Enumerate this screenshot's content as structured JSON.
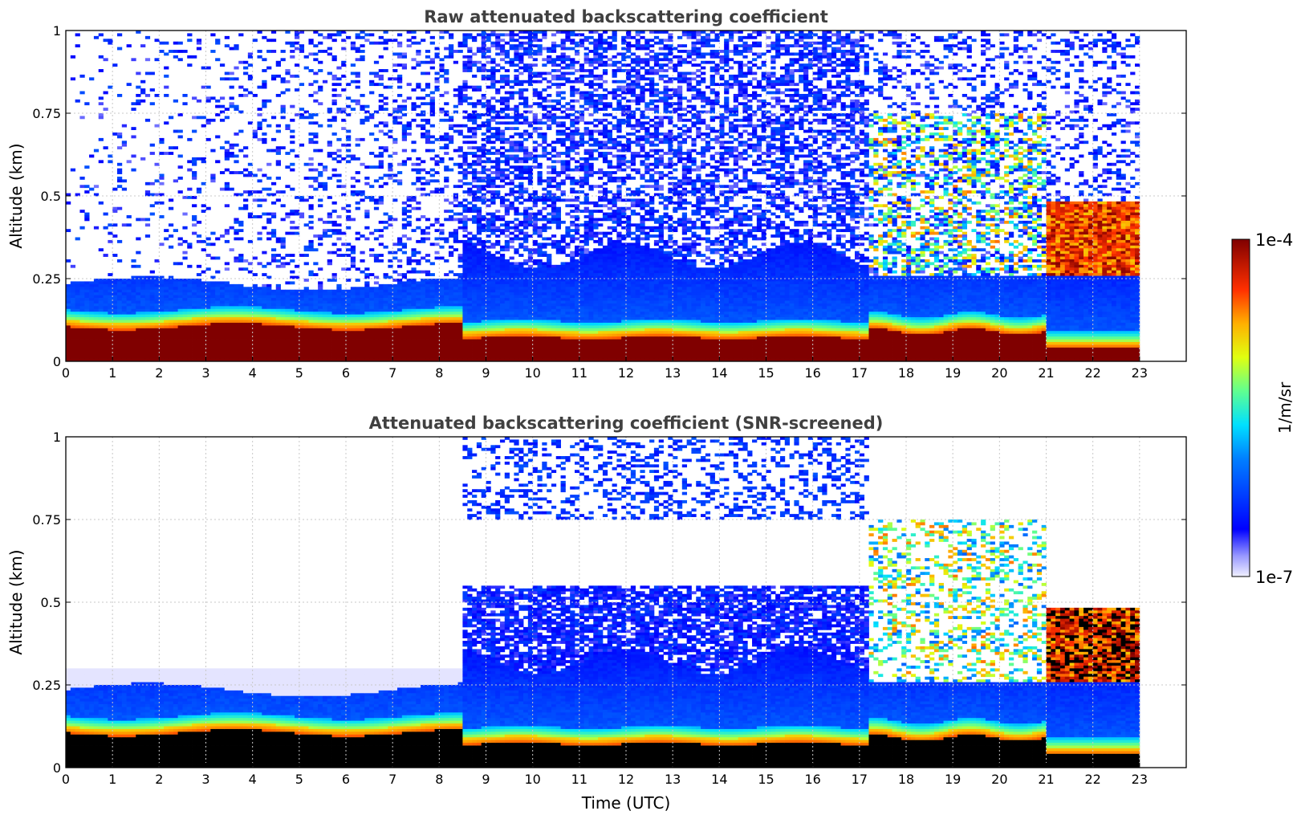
{
  "chart_data": [
    {
      "type": "heatmap",
      "title": "Raw attenuated backscattering coefficient",
      "xlabel": "",
      "ylabel": "Altitude (km)",
      "xlim": [
        0,
        24
      ],
      "ylim": [
        0,
        1
      ],
      "x_ticks": [
        "0",
        "1",
        "2",
        "3",
        "4",
        "5",
        "6",
        "7",
        "8",
        "9",
        "10",
        "11",
        "12",
        "13",
        "14",
        "15",
        "16",
        "17",
        "18",
        "19",
        "20",
        "21",
        "22",
        "23"
      ],
      "y_ticks": [
        "0",
        "0.25",
        "0.5",
        "0.75",
        "1"
      ],
      "grid": true,
      "data_end_hour": 23,
      "regimes": [
        {
          "from_hour": 0,
          "to_hour": 9,
          "surface_layer_top_km": 0.1,
          "boundary_layer_top_km": 0.25,
          "noise_top_km": 1.0
        },
        {
          "from_hour": 9,
          "to_hour": 17.2,
          "surface_layer_top_km": 0.07,
          "boundary_layer_top_km": 0.3,
          "noise_top_km": 1.0
        },
        {
          "from_hour": 17.2,
          "to_hour": 21,
          "surface_layer_top_km": 0.09,
          "cloud_altitude_km": 0.6
        },
        {
          "from_hour": 21,
          "to_hour": 23,
          "surface_layer_top_km": 0.05,
          "cloud_altitude_km": 0.35
        }
      ]
    },
    {
      "type": "heatmap",
      "title": "Attenuated backscattering coefficient (SNR-screened)",
      "xlabel": "Time (UTC)",
      "ylabel": "Altitude (km)",
      "xlim": [
        0,
        24
      ],
      "ylim": [
        0,
        1
      ],
      "x_ticks": [
        "0",
        "1",
        "2",
        "3",
        "4",
        "5",
        "6",
        "7",
        "8",
        "9",
        "10",
        "11",
        "12",
        "13",
        "14",
        "15",
        "16",
        "17",
        "18",
        "19",
        "20",
        "21",
        "22",
        "23"
      ],
      "y_ticks": [
        "0",
        "0.25",
        "0.5",
        "0.75",
        "1"
      ],
      "grid": true,
      "data_end_hour": 23,
      "screened": true
    }
  ],
  "colorbar": {
    "label": "1/m/sr",
    "max_label": "1e-4",
    "min_label": "1e-7",
    "scale": "log",
    "colormap": "jet"
  }
}
